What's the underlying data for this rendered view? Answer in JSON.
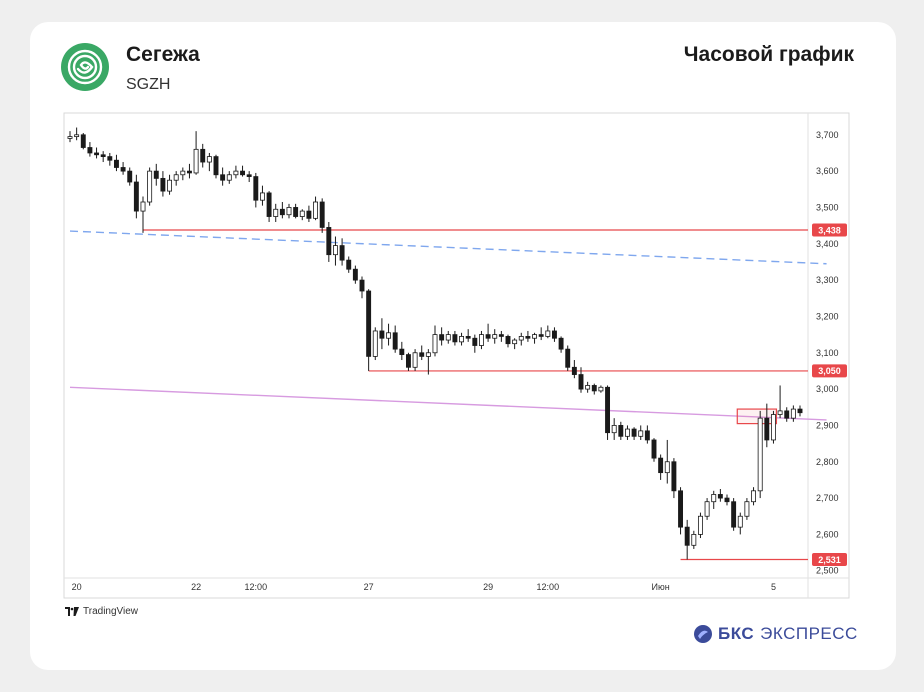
{
  "header": {
    "company": "Сегежа",
    "ticker": "SGZH",
    "chart_title": "Часовой график"
  },
  "footer": {
    "tradingview": "TradingView",
    "bcs_brand": "БКС",
    "bcs_suffix": "ЭКСПРЕСС"
  },
  "colors": {
    "bull": "#ffffff",
    "bear": "#1a1a1a",
    "level": "#e8474a",
    "dashed_trend": "#7fa7ee",
    "solid_trend": "#d79be0",
    "logo_green": "#3aa865"
  },
  "chart_data": {
    "type": "candlestick",
    "title": "",
    "xlabel": "",
    "ylabel": "",
    "ylim": [
      2480,
      3760
    ],
    "y_ticks": [
      2500,
      2600,
      2700,
      2800,
      2900,
      3000,
      3100,
      3200,
      3300,
      3400,
      3500,
      3600,
      3700
    ],
    "y_tick_labels": [
      "2,500",
      "2,600",
      "2,700",
      "2,800",
      "2,900",
      "3,000",
      "3,100",
      "3,200",
      "3,300",
      "3,400",
      "3,500",
      "3,600",
      "3,700"
    ],
    "x_tick_labels": [
      {
        "label": "20",
        "bar": 1
      },
      {
        "label": "22",
        "bar": 19
      },
      {
        "label": "12:00",
        "bar": 28
      },
      {
        "label": "27",
        "bar": 45
      },
      {
        "label": "29",
        "bar": 63
      },
      {
        "label": "12:00",
        "bar": 72
      },
      {
        "label": "Июн",
        "bar": 89
      },
      {
        "label": "5",
        "bar": 106
      }
    ],
    "levels": [
      {
        "price": 3438,
        "label": "3,438",
        "from_bar": 11
      },
      {
        "price": 3050,
        "label": "3,050",
        "from_bar": 45
      },
      {
        "price": 2531,
        "label": "2,531",
        "from_bar": 92
      }
    ],
    "trendlines": [
      {
        "style": "dashed",
        "from": {
          "bar": 0,
          "price": 3435
        },
        "to": {
          "bar": 114,
          "price": 3345
        }
      },
      {
        "style": "solid",
        "from": {
          "bar": 0,
          "price": 3005
        },
        "to": {
          "bar": 114,
          "price": 2915
        }
      }
    ],
    "highlight": {
      "bar_from": 101,
      "bar_to": 106,
      "price_low": 2905,
      "price_high": 2945
    },
    "candles": [
      [
        3690,
        3710,
        3680,
        3695
      ],
      [
        3695,
        3720,
        3685,
        3700
      ],
      [
        3700,
        3705,
        3660,
        3665
      ],
      [
        3665,
        3680,
        3640,
        3650
      ],
      [
        3650,
        3665,
        3635,
        3645
      ],
      [
        3645,
        3655,
        3625,
        3640
      ],
      [
        3640,
        3650,
        3615,
        3630
      ],
      [
        3630,
        3645,
        3600,
        3610
      ],
      [
        3610,
        3625,
        3590,
        3600
      ],
      [
        3600,
        3610,
        3560,
        3570
      ],
      [
        3570,
        3590,
        3470,
        3490
      ],
      [
        3490,
        3530,
        3430,
        3515
      ],
      [
        3515,
        3610,
        3505,
        3600
      ],
      [
        3600,
        3620,
        3560,
        3580
      ],
      [
        3580,
        3600,
        3530,
        3545
      ],
      [
        3545,
        3590,
        3535,
        3575
      ],
      [
        3575,
        3600,
        3560,
        3590
      ],
      [
        3590,
        3610,
        3575,
        3600
      ],
      [
        3600,
        3620,
        3580,
        3595
      ],
      [
        3595,
        3710,
        3590,
        3660
      ],
      [
        3660,
        3675,
        3610,
        3625
      ],
      [
        3625,
        3650,
        3600,
        3640
      ],
      [
        3640,
        3645,
        3580,
        3590
      ],
      [
        3590,
        3610,
        3560,
        3575
      ],
      [
        3575,
        3600,
        3565,
        3590
      ],
      [
        3590,
        3615,
        3580,
        3600
      ],
      [
        3600,
        3615,
        3585,
        3590
      ],
      [
        3590,
        3600,
        3570,
        3585
      ],
      [
        3585,
        3595,
        3500,
        3520
      ],
      [
        3520,
        3560,
        3505,
        3540
      ],
      [
        3540,
        3545,
        3460,
        3475
      ],
      [
        3475,
        3510,
        3460,
        3495
      ],
      [
        3495,
        3515,
        3470,
        3480
      ],
      [
        3480,
        3510,
        3470,
        3500
      ],
      [
        3500,
        3510,
        3470,
        3475
      ],
      [
        3475,
        3495,
        3465,
        3490
      ],
      [
        3490,
        3505,
        3460,
        3470
      ],
      [
        3470,
        3530,
        3465,
        3515
      ],
      [
        3515,
        3525,
        3430,
        3445
      ],
      [
        3445,
        3460,
        3350,
        3370
      ],
      [
        3370,
        3420,
        3340,
        3395
      ],
      [
        3395,
        3415,
        3340,
        3355
      ],
      [
        3355,
        3365,
        3320,
        3330
      ],
      [
        3330,
        3340,
        3290,
        3300
      ],
      [
        3300,
        3310,
        3250,
        3270
      ],
      [
        3270,
        3275,
        3050,
        3090
      ],
      [
        3090,
        3170,
        3080,
        3160
      ],
      [
        3160,
        3195,
        3110,
        3140
      ],
      [
        3140,
        3180,
        3120,
        3155
      ],
      [
        3155,
        3175,
        3100,
        3110
      ],
      [
        3110,
        3130,
        3080,
        3095
      ],
      [
        3095,
        3100,
        3050,
        3060
      ],
      [
        3060,
        3110,
        3050,
        3100
      ],
      [
        3100,
        3120,
        3080,
        3090
      ],
      [
        3090,
        3110,
        3040,
        3100
      ],
      [
        3100,
        3175,
        3090,
        3150
      ],
      [
        3150,
        3170,
        3120,
        3135
      ],
      [
        3135,
        3160,
        3125,
        3150
      ],
      [
        3150,
        3160,
        3120,
        3130
      ],
      [
        3130,
        3155,
        3120,
        3145
      ],
      [
        3145,
        3165,
        3130,
        3140
      ],
      [
        3140,
        3150,
        3100,
        3120
      ],
      [
        3120,
        3160,
        3110,
        3150
      ],
      [
        3150,
        3180,
        3130,
        3140
      ],
      [
        3140,
        3165,
        3125,
        3150
      ],
      [
        3150,
        3160,
        3130,
        3145
      ],
      [
        3145,
        3150,
        3115,
        3125
      ],
      [
        3125,
        3140,
        3110,
        3135
      ],
      [
        3135,
        3155,
        3120,
        3145
      ],
      [
        3145,
        3160,
        3130,
        3140
      ],
      [
        3140,
        3155,
        3125,
        3150
      ],
      [
        3150,
        3170,
        3135,
        3145
      ],
      [
        3145,
        3175,
        3140,
        3160
      ],
      [
        3160,
        3170,
        3130,
        3140
      ],
      [
        3140,
        3145,
        3100,
        3110
      ],
      [
        3110,
        3120,
        3050,
        3060
      ],
      [
        3060,
        3080,
        3030,
        3040
      ],
      [
        3040,
        3060,
        2990,
        3000
      ],
      [
        3000,
        3020,
        2990,
        3010
      ],
      [
        3010,
        3015,
        2985,
        2995
      ],
      [
        2995,
        3010,
        2990,
        3005
      ],
      [
        3005,
        3010,
        2860,
        2880
      ],
      [
        2880,
        2920,
        2860,
        2900
      ],
      [
        2900,
        2910,
        2860,
        2870
      ],
      [
        2870,
        2900,
        2860,
        2890
      ],
      [
        2890,
        2895,
        2860,
        2870
      ],
      [
        2870,
        2900,
        2860,
        2885
      ],
      [
        2885,
        2900,
        2850,
        2860
      ],
      [
        2860,
        2865,
        2800,
        2810
      ],
      [
        2810,
        2820,
        2750,
        2770
      ],
      [
        2770,
        2860,
        2740,
        2800
      ],
      [
        2800,
        2810,
        2700,
        2720
      ],
      [
        2720,
        2730,
        2600,
        2620
      ],
      [
        2620,
        2640,
        2531,
        2570
      ],
      [
        2570,
        2610,
        2560,
        2600
      ],
      [
        2600,
        2660,
        2590,
        2650
      ],
      [
        2650,
        2700,
        2640,
        2690
      ],
      [
        2690,
        2720,
        2670,
        2710
      ],
      [
        2710,
        2725,
        2690,
        2700
      ],
      [
        2700,
        2710,
        2680,
        2690
      ],
      [
        2690,
        2700,
        2610,
        2620
      ],
      [
        2620,
        2660,
        2600,
        2650
      ],
      [
        2650,
        2700,
        2640,
        2690
      ],
      [
        2690,
        2730,
        2680,
        2720
      ],
      [
        2720,
        2940,
        2700,
        2920
      ],
      [
        2920,
        2960,
        2840,
        2860
      ],
      [
        2860,
        2940,
        2850,
        2930
      ],
      [
        2930,
        3010,
        2920,
        2940
      ],
      [
        2940,
        2950,
        2910,
        2920
      ],
      [
        2920,
        2955,
        2910,
        2945
      ],
      [
        2945,
        2955,
        2925,
        2935
      ]
    ]
  }
}
